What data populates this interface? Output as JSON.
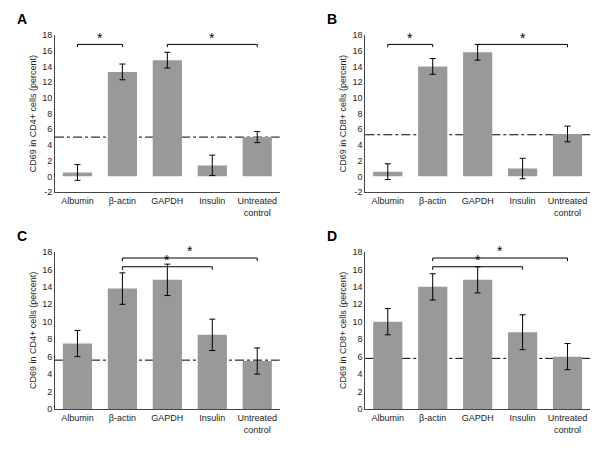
{
  "chart_data": [
    {
      "type": "bar",
      "title": "A",
      "ylabel": "CD69 in CD4+ cells (percent)",
      "categories": [
        "Albumin",
        "β-actin",
        "GAPDH",
        "Insulin",
        "Untreated\ncontrol"
      ],
      "values": [
        0.5,
        13.3,
        14.8,
        1.4,
        5.0
      ],
      "errors": [
        1.0,
        1.0,
        1.0,
        1.3,
        0.7
      ],
      "reference_line": 5.0,
      "ylim": [
        -2,
        18
      ],
      "yticks": [
        -2,
        0,
        2,
        4,
        6,
        8,
        10,
        12,
        14,
        16,
        18
      ],
      "grid": false,
      "color": "#999999",
      "annotations": [
        {
          "text": "*",
          "from": "Albumin",
          "to": "β-actin",
          "y": 16.8,
          "text_y": 17.1
        },
        {
          "text": "*",
          "from": "GAPDH",
          "to": "Untreated\ncontrol",
          "y": 16.8,
          "text_y": 17.1
        }
      ]
    },
    {
      "type": "bar",
      "title": "B",
      "ylabel": "CD69 in CD8+ cells (percent)",
      "categories": [
        "Albumin",
        "β-actin",
        "GAPDH",
        "Insulin",
        "Untreated\ncontrol"
      ],
      "values": [
        0.6,
        14.0,
        15.8,
        1.0,
        5.4
      ],
      "errors": [
        1.0,
        1.0,
        1.0,
        1.3,
        1.0
      ],
      "reference_line": 5.3,
      "ylim": [
        -2,
        18
      ],
      "yticks": [
        -2,
        0,
        2,
        4,
        6,
        8,
        10,
        12,
        14,
        16,
        18
      ],
      "grid": false,
      "color": "#999999",
      "annotations": [
        {
          "text": "*",
          "from": "Albumin",
          "to": "β-actin",
          "y": 16.8,
          "text_y": 17.1
        },
        {
          "text": "*",
          "from": "GAPDH",
          "to": "Untreated\ncontrol",
          "y": 16.8,
          "text_y": 17.1
        }
      ]
    },
    {
      "type": "bar",
      "title": "C",
      "ylabel": "CD69 in CD4+ cells (percent)",
      "categories": [
        "Albumin",
        "β-actin",
        "GAPDH",
        "Insulin",
        "Untreated\ncontrol"
      ],
      "values": [
        7.5,
        13.8,
        14.8,
        8.5,
        5.5
      ],
      "errors": [
        1.5,
        1.8,
        1.8,
        1.8,
        1.5
      ],
      "reference_line": 5.6,
      "ylim": [
        0,
        18
      ],
      "yticks": [
        0,
        2,
        4,
        6,
        8,
        10,
        12,
        14,
        16,
        18
      ],
      "grid": false,
      "color": "#999999",
      "annotations": [
        {
          "text": "*",
          "from": "β-actin",
          "to": "Insulin",
          "y": 16.3,
          "text_y": 16.6
        },
        {
          "text": "*",
          "from": "β-actin",
          "to": "Untreated\ncontrol",
          "y": 17.3,
          "text_y": 17.6
        }
      ]
    },
    {
      "type": "bar",
      "title": "D",
      "ylabel": "CD69 in CD8+ cells (percent)",
      "categories": [
        "Albumin",
        "β-actin",
        "GAPDH",
        "Insulin",
        "Untreated\ncontrol"
      ],
      "values": [
        10.0,
        14.0,
        14.8,
        8.8,
        6.0
      ],
      "errors": [
        1.5,
        1.5,
        1.5,
        2.0,
        1.5
      ],
      "reference_line": 5.8,
      "ylim": [
        0,
        18
      ],
      "yticks": [
        0,
        2,
        4,
        6,
        8,
        10,
        12,
        14,
        16,
        18
      ],
      "grid": false,
      "color": "#999999",
      "annotations": [
        {
          "text": "*",
          "from": "β-actin",
          "to": "Insulin",
          "y": 16.3,
          "text_y": 16.6
        },
        {
          "text": "*",
          "from": "β-actin",
          "to": "Untreated\ncontrol",
          "y": 17.3,
          "text_y": 17.6
        }
      ]
    }
  ]
}
